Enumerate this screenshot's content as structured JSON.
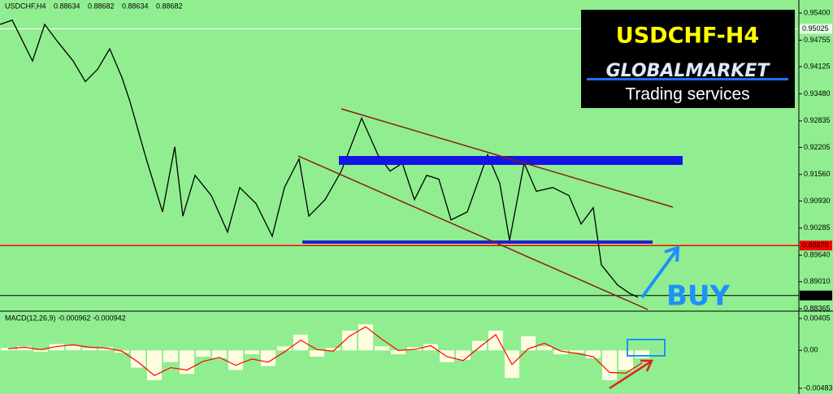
{
  "symbol_header": "USDCHF,H4",
  "quote": [
    0.88634,
    0.88682,
    0.88634,
    0.88682
  ],
  "banner": {
    "title": "USDCHF-H4",
    "brand": "GLOBALMARKET",
    "tagline": "Trading services"
  },
  "annotation": "BUY",
  "chart_data": [
    {
      "type": "line",
      "color": "#000000",
      "x": [
        0,
        15,
        40,
        55,
        70,
        90,
        105,
        120,
        135,
        150,
        160,
        180,
        200,
        215,
        225,
        240,
        260,
        280,
        295,
        315,
        335,
        350,
        368,
        380,
        400,
        420,
        445,
        465,
        480,
        495,
        510,
        525,
        540,
        555,
        575,
        600,
        615,
        627,
        645,
        660,
        680,
        700,
        715,
        730,
        740,
        760,
        775,
        785
      ],
      "values": [
        0.9513,
        0.9523,
        0.9426,
        0.9513,
        0.9474,
        0.9426,
        0.9377,
        0.9406,
        0.9455,
        0.9387,
        0.9329,
        0.9193,
        0.9067,
        0.9222,
        0.9057,
        0.9154,
        0.9106,
        0.9019,
        0.9125,
        0.9087,
        0.9009,
        0.9125,
        0.9193,
        0.9057,
        0.9096,
        0.9164,
        0.929,
        0.9203,
        0.9164,
        0.9183,
        0.9096,
        0.9154,
        0.9145,
        0.9048,
        0.9067,
        0.9203,
        0.9135,
        0.8999,
        0.9183,
        0.9116,
        0.9125,
        0.9106,
        0.9038,
        0.9077,
        0.8941,
        0.8893,
        0.8873,
        0.8864
      ],
      "xlim": [
        0,
        983
      ],
      "ylim": [
        0.8831,
        0.9571
      ],
      "yticks": [
        {
          "value": 0.954,
          "label": "0.95400"
        },
        0.94755,
        0.94125,
        {
          "value": 0.9348,
          "label": "0.93480"
        },
        0.92835,
        0.92205,
        {
          "value": 0.9156,
          "label": "0.91560"
        },
        {
          "value": 0.9093,
          "label": "0.90930"
        },
        0.90285,
        {
          "value": 0.8964,
          "label": "0.89640"
        },
        {
          "value": 0.8901,
          "label": "0.89010"
        },
        0.88365
      ],
      "levels": [
        {
          "value": 0.95025,
          "color": "#ffffff"
        },
        {
          "value": 0.8987,
          "label": "0.89870",
          "color": "#ff0000"
        },
        {
          "value": 0.88682,
          "color": "#000000"
        }
      ]
    },
    {
      "type": "bar",
      "title": "MACD(12,26,9) -0.000962 -0.000942",
      "color": "#fffde0",
      "x": [
        10,
        30,
        50,
        70,
        90,
        110,
        130,
        150,
        170,
        190,
        210,
        230,
        250,
        270,
        290,
        310,
        330,
        350,
        370,
        390,
        410,
        430,
        450,
        470,
        490,
        510,
        530,
        550,
        570,
        590,
        610,
        630,
        650,
        670,
        690,
        710,
        730,
        750,
        770,
        790
      ],
      "values": [
        0.0003,
        0.0005,
        -0.0002,
        0.0008,
        0.0006,
        0.0003,
        0.0004,
        -0.0003,
        -0.0022,
        -0.0038,
        -0.0015,
        -0.003,
        -0.0008,
        -0.001,
        -0.0025,
        -0.0005,
        -0.002,
        0.0005,
        0.002,
        -0.0008,
        0.0003,
        0.0025,
        0.0033,
        0.0005,
        -0.0005,
        0.0004,
        0.0008,
        -0.0015,
        -0.0012,
        0.0012,
        0.0025,
        -0.0035,
        0.0018,
        0.0005,
        -0.0005,
        -0.0003,
        -0.001,
        -0.0038,
        -0.0025,
        -0.001
      ],
      "signal": {
        "color": "#ff0000",
        "values": [
          0.0002,
          0.0004,
          0.0001,
          0.0005,
          0.0007,
          0.0004,
          0.0003,
          -0.0001,
          -0.0015,
          -0.0032,
          -0.0022,
          -0.0025,
          -0.0014,
          -0.0009,
          -0.0019,
          -0.0011,
          -0.0015,
          -0.0002,
          0.0013,
          0.0001,
          -0.0001,
          0.0018,
          0.003,
          0.0014,
          0.0,
          0.0001,
          0.0006,
          -0.0008,
          -0.0013,
          0.0004,
          0.002,
          -0.0018,
          0.0002,
          0.0009,
          -0.0001,
          -0.0004,
          -0.0008,
          -0.0028,
          -0.0029,
          -0.0016
        ]
      },
      "xlim": [
        0,
        983
      ],
      "ylim": [
        -0.00555,
        0.00488
      ],
      "yticks": [
        0.00405,
        {
          "value": 0,
          "label": "0.00"
        },
        -0.00483
      ]
    }
  ]
}
